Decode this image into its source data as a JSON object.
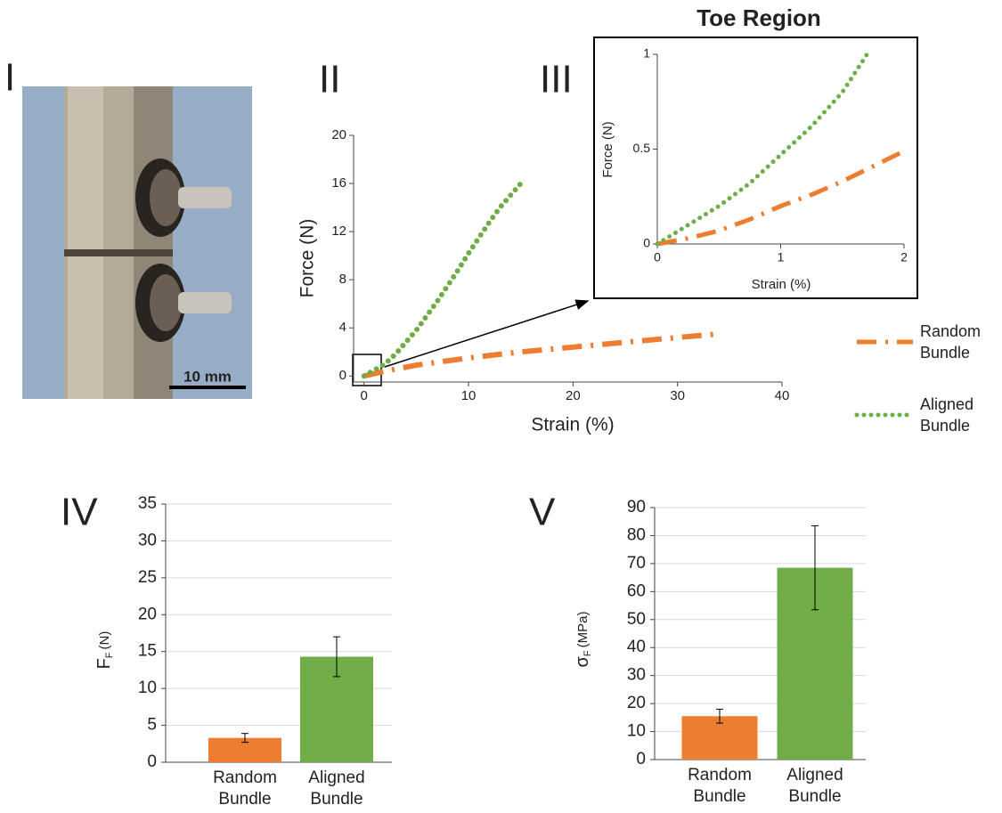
{
  "panel_labels": [
    "I",
    "II",
    "III",
    "IV",
    "V"
  ],
  "photo": {
    "scale_bar": "10 mm"
  },
  "chart_data": [
    {
      "type": "line",
      "x_label": "Strain (%)",
      "y_label": "Force (N)",
      "xlim": [
        -1,
        40
      ],
      "ylim": [
        -0.5,
        20
      ],
      "xticks": [
        0,
        10,
        20,
        30,
        40
      ],
      "yticks": [
        0,
        4,
        8,
        12,
        16,
        20
      ],
      "series": [
        {
          "name": "Random Bundle",
          "color": "#ed7d31",
          "dash": "dashdot",
          "x": [
            0,
            2,
            5,
            10,
            15,
            20,
            25,
            30,
            34
          ],
          "values": [
            0,
            0.4,
            0.9,
            1.5,
            2,
            2.4,
            2.8,
            3.2,
            3.5
          ]
        },
        {
          "name": "Aligned Bundle",
          "color": "#70ad47",
          "dash": "dotted",
          "x": [
            0,
            1,
            2,
            3,
            4,
            5,
            6,
            7,
            8,
            9,
            10,
            11,
            12,
            13,
            14,
            15
          ],
          "values": [
            0,
            0.5,
            1,
            1.8,
            2.8,
            3.8,
            5,
            6.2,
            7.5,
            8.8,
            10.2,
            11.5,
            12.8,
            14,
            15,
            16
          ]
        }
      ]
    },
    {
      "type": "line",
      "title": "Toe Region",
      "x_label": "Strain (%)",
      "y_label": "Force (N)",
      "xlim": [
        0,
        2
      ],
      "ylim": [
        0,
        1
      ],
      "xticks": [
        0,
        1,
        2
      ],
      "yticks": [
        0,
        0.5,
        1
      ],
      "series": [
        {
          "color": "#ed7d31",
          "dash": "dashdot",
          "x": [
            0,
            0.25,
            0.5,
            0.75,
            1,
            1.25,
            1.5,
            1.75,
            2
          ],
          "values": [
            0,
            0.03,
            0.07,
            0.13,
            0.2,
            0.26,
            0.33,
            0.41,
            0.49
          ]
        },
        {
          "color": "#70ad47",
          "dash": "dotted",
          "x": [
            0,
            0.25,
            0.5,
            0.75,
            1,
            1.25,
            1.5,
            1.7
          ],
          "values": [
            0,
            0.1,
            0.2,
            0.32,
            0.47,
            0.62,
            0.8,
            1
          ]
        }
      ]
    },
    {
      "type": "bar",
      "y_label": {
        "main": "F",
        "sub": "F",
        "unit": "(N)"
      },
      "categories": [
        "Random Bundle",
        "Aligned Bundle"
      ],
      "values": [
        3.3,
        14.3
      ],
      "errors": [
        0.6,
        2.7
      ],
      "colors": [
        "#ed7d31",
        "#70ad47"
      ],
      "ylim": [
        0,
        35
      ],
      "yticks": [
        0,
        5,
        10,
        15,
        20,
        25,
        30,
        35
      ],
      "grid": true
    },
    {
      "type": "bar",
      "y_label": {
        "main": "σ",
        "sub": "F",
        "unit": "(MPa)"
      },
      "categories": [
        "Random Bundle",
        "Aligned Bundle"
      ],
      "values": [
        15.5,
        68.5
      ],
      "errors": [
        2.5,
        15
      ],
      "colors": [
        "#ed7d31",
        "#70ad47"
      ],
      "ylim": [
        0,
        90
      ],
      "yticks": [
        0,
        10,
        20,
        30,
        40,
        50,
        60,
        70,
        80,
        90
      ],
      "grid": true
    }
  ]
}
